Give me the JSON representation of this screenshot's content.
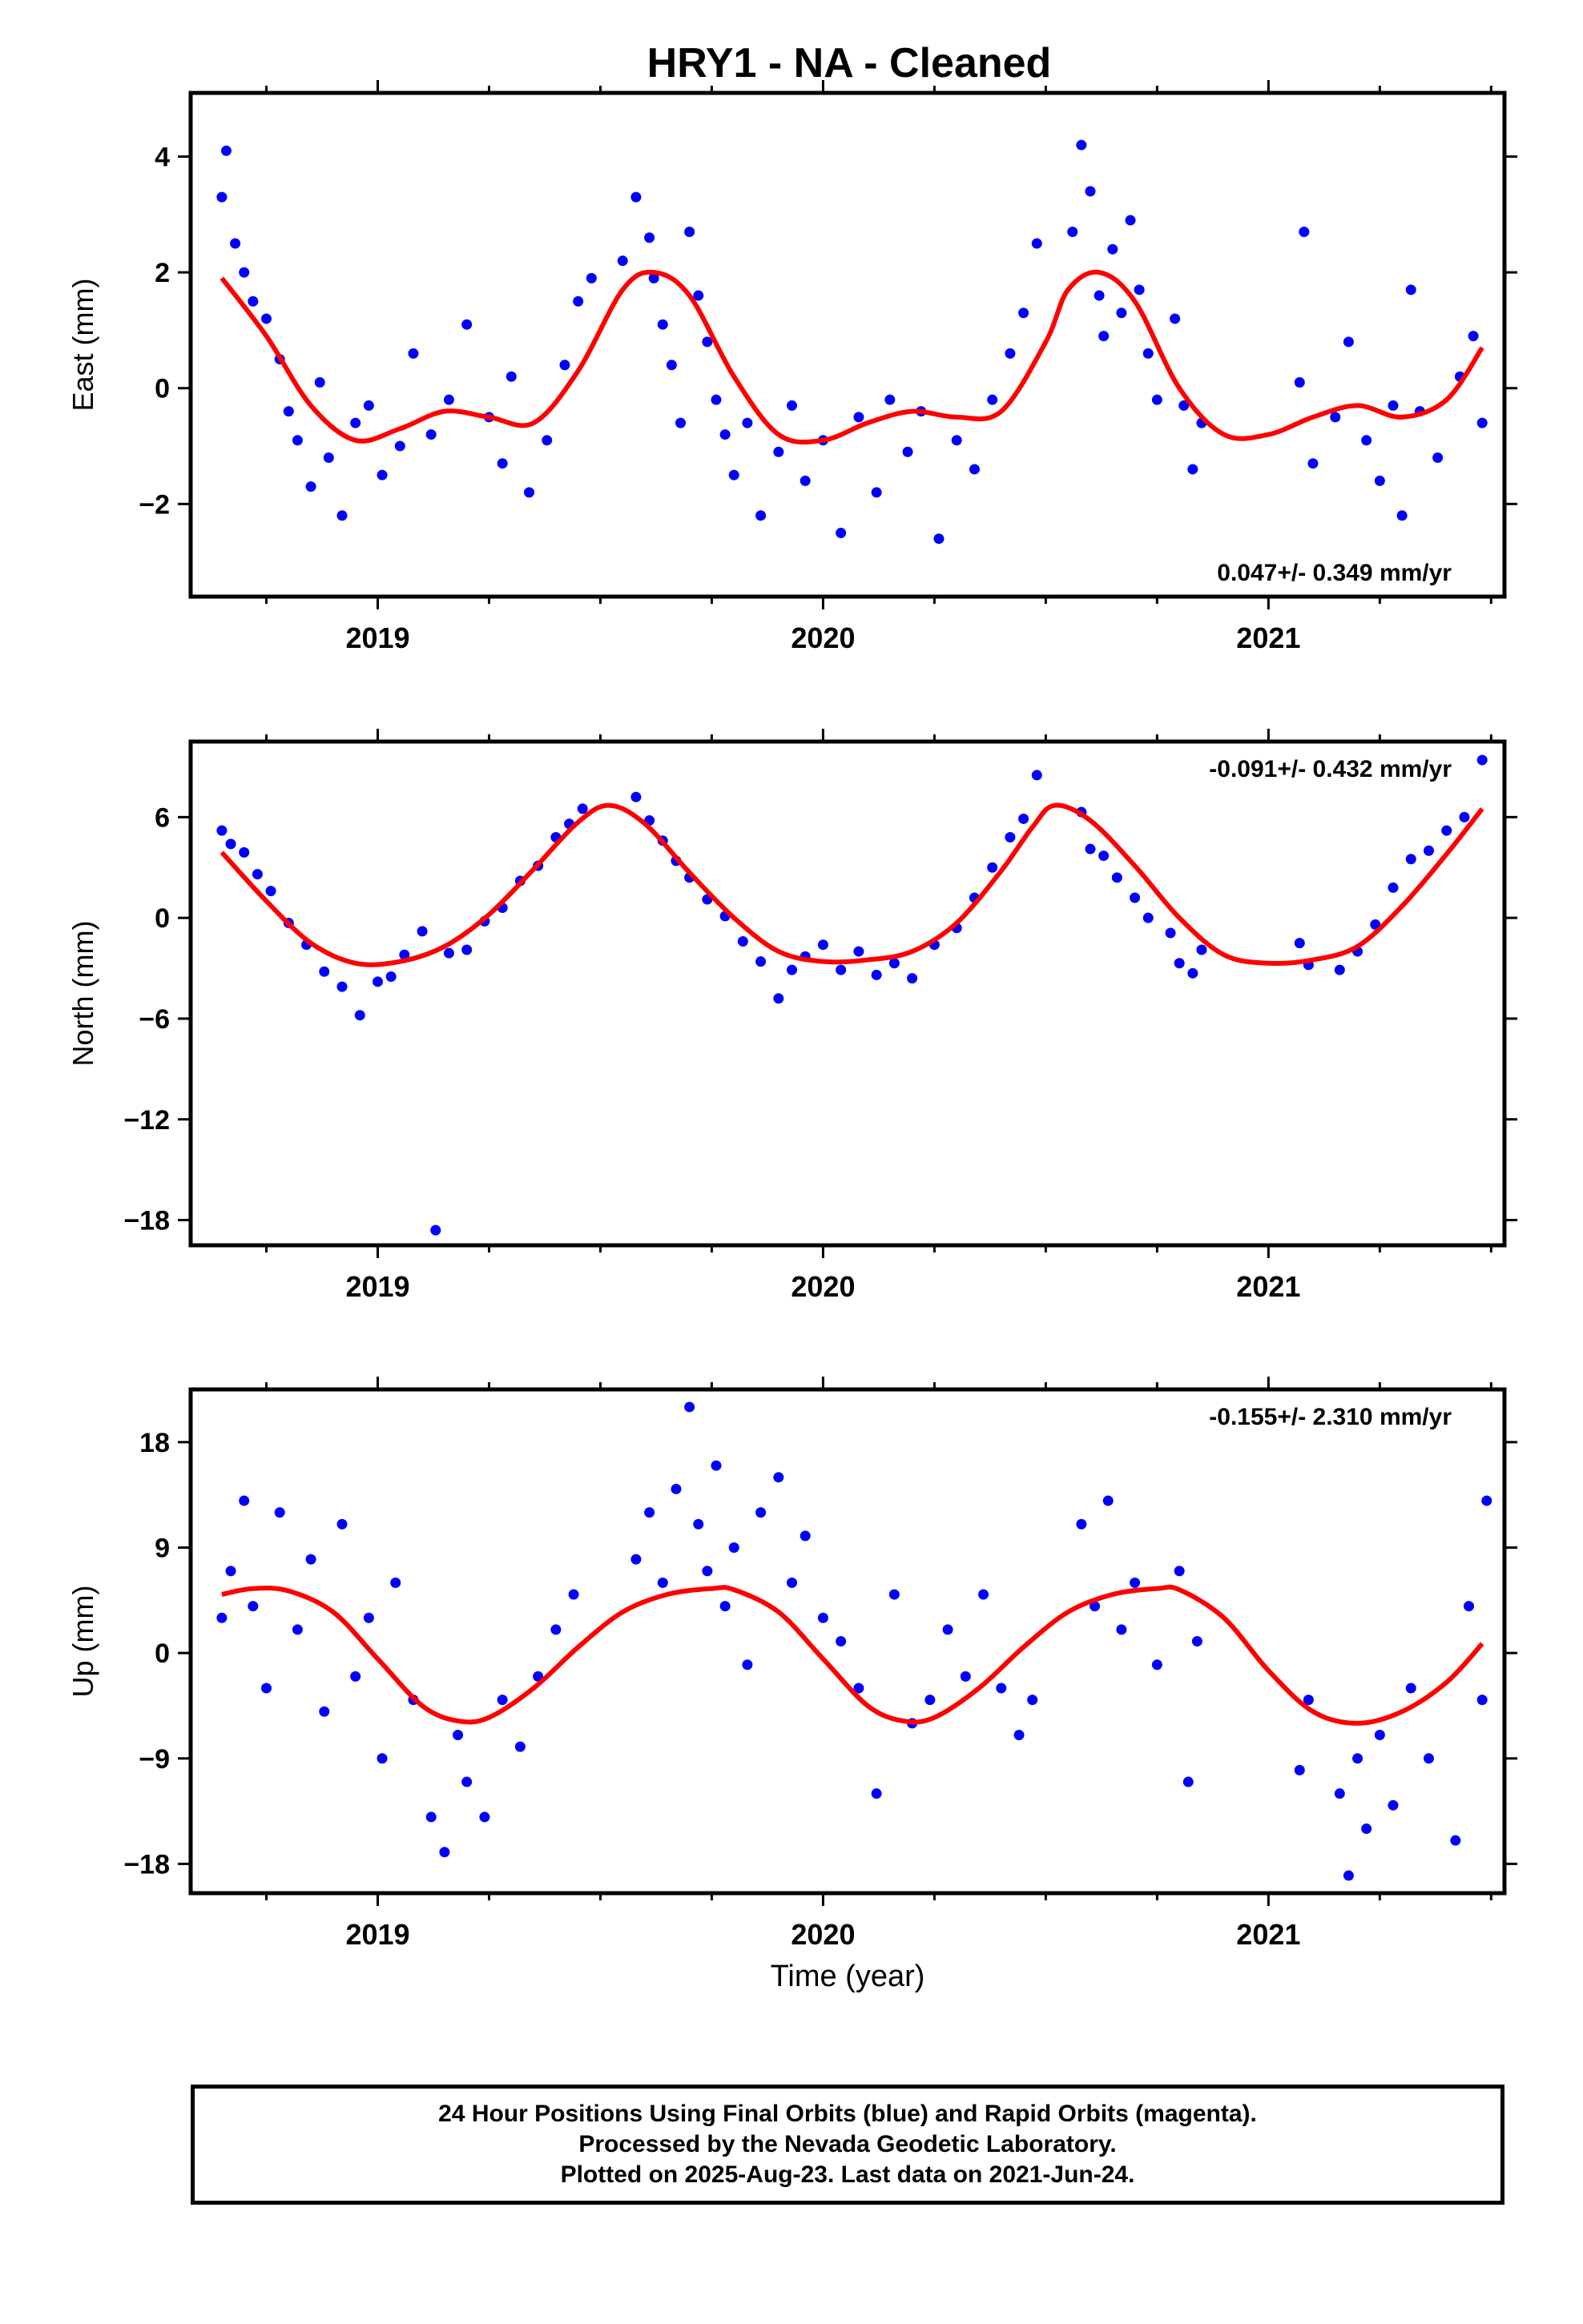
{
  "title": "HRY1  - NA - Cleaned",
  "colors": {
    "points": "#0000ff",
    "fit": "#ff0000",
    "axis": "#000000"
  },
  "footer": {
    "line1": "24 Hour Positions Using Final Orbits (blue) and Rapid Orbits (magenta).",
    "line2": "Processed by the Nevada Geodetic Laboratory.",
    "line3": "Plotted on 2025-Aug-23. Last data on 2021-Jun-24."
  },
  "chart_data": [
    {
      "type": "scatter",
      "ylabel": "East (mm)",
      "xlabel": "",
      "xlim": [
        2018.58,
        2021.53
      ],
      "ylim": [
        -3.6,
        5.1
      ],
      "yticks": [
        4,
        2,
        0,
        -2
      ],
      "ytick_labels": [
        "4",
        "2",
        "0",
        "−2"
      ],
      "xticks": [
        2019,
        2020,
        2021
      ],
      "xtick_labels": [
        "2019",
        "2020",
        "2021"
      ],
      "rate_label": "0.047+/- 0.349 mm/yr",
      "rate_position": "bottom-right",
      "series": [
        {
          "kind": "scatter",
          "x": [
            2018.65,
            2018.66,
            2018.68,
            2018.7,
            2018.72,
            2018.75,
            2018.78,
            2018.8,
            2018.82,
            2018.85,
            2018.87,
            2018.89,
            2018.92,
            2018.95,
            2018.98,
            2019.01,
            2019.05,
            2019.08,
            2019.12,
            2019.16,
            2019.2,
            2019.25,
            2019.28,
            2019.3,
            2019.34,
            2019.38,
            2019.42,
            2019.45,
            2019.48,
            2019.55,
            2019.58,
            2019.61,
            2019.62,
            2019.64,
            2019.66,
            2019.68,
            2019.7,
            2019.72,
            2019.74,
            2019.76,
            2019.78,
            2019.8,
            2019.83,
            2019.86,
            2019.9,
            2019.93,
            2019.96,
            2020.0,
            2020.04,
            2020.08,
            2020.12,
            2020.15,
            2020.19,
            2020.22,
            2020.26,
            2020.3,
            2020.34,
            2020.38,
            2020.42,
            2020.45,
            2020.48,
            2020.56,
            2020.58,
            2020.6,
            2020.62,
            2020.63,
            2020.65,
            2020.67,
            2020.69,
            2020.71,
            2020.73,
            2020.75,
            2020.79,
            2020.81,
            2020.83,
            2020.85,
            2021.07,
            2021.08,
            2021.1,
            2021.15,
            2021.18,
            2021.22,
            2021.25,
            2021.28,
            2021.3,
            2021.32,
            2021.34,
            2021.38,
            2021.43,
            2021.46,
            2021.48
          ],
          "y": [
            3.3,
            4.1,
            2.5,
            2.0,
            1.5,
            1.2,
            0.5,
            -0.4,
            -0.9,
            -1.7,
            0.1,
            -1.2,
            -2.2,
            -0.6,
            -0.3,
            -1.5,
            -1.0,
            0.6,
            -0.8,
            -0.2,
            1.1,
            -0.5,
            -1.3,
            0.2,
            -1.8,
            -0.9,
            0.4,
            1.5,
            1.9,
            2.2,
            3.3,
            2.6,
            1.9,
            1.1,
            0.4,
            -0.6,
            2.7,
            1.6,
            0.8,
            -0.2,
            -0.8,
            -1.5,
            -0.6,
            -2.2,
            -1.1,
            -0.3,
            -1.6,
            -0.9,
            -2.5,
            -0.5,
            -1.8,
            -0.2,
            -1.1,
            -0.4,
            -2.6,
            -0.9,
            -1.4,
            -0.2,
            0.6,
            1.3,
            2.5,
            2.7,
            4.2,
            3.4,
            1.6,
            0.9,
            2.4,
            1.3,
            2.9,
            1.7,
            0.6,
            -0.2,
            1.2,
            -0.3,
            -1.4,
            -0.6,
            0.1,
            2.7,
            -1.3,
            -0.5,
            0.8,
            -0.9,
            -1.6,
            -0.3,
            -2.2,
            1.7,
            -0.4,
            -1.2,
            0.2,
            0.9,
            -0.6
          ],
          "color": "#0000ff"
        },
        {
          "kind": "line",
          "x": [
            2018.65,
            2018.75,
            2018.85,
            2018.95,
            2019.05,
            2019.15,
            2019.25,
            2019.35,
            2019.45,
            2019.55,
            2019.62,
            2019.7,
            2019.8,
            2019.9,
            2020.0,
            2020.1,
            2020.2,
            2020.3,
            2020.4,
            2020.5,
            2020.55,
            2020.62,
            2020.7,
            2020.8,
            2020.9,
            2021.0,
            2021.1,
            2021.2,
            2021.3,
            2021.4,
            2021.48
          ],
          "y": [
            1.9,
            0.9,
            -0.3,
            -0.9,
            -0.7,
            -0.4,
            -0.5,
            -0.6,
            0.3,
            1.7,
            2.0,
            1.6,
            0.2,
            -0.8,
            -0.9,
            -0.6,
            -0.4,
            -0.5,
            -0.4,
            0.8,
            1.7,
            2.0,
            1.5,
            0.0,
            -0.8,
            -0.8,
            -0.5,
            -0.3,
            -0.5,
            -0.2,
            0.7
          ],
          "color": "#ff0000"
        }
      ]
    },
    {
      "type": "scatter",
      "ylabel": "North (mm)",
      "xlabel": "",
      "xlim": [
        2018.58,
        2021.53
      ],
      "ylim": [
        -19.5,
        10.5
      ],
      "yticks": [
        6,
        0,
        -6,
        -12,
        -18
      ],
      "ytick_labels": [
        "6",
        "0",
        "−6",
        "−12",
        "−18"
      ],
      "xticks": [
        2019,
        2020,
        2021
      ],
      "xtick_labels": [
        "2019",
        "2020",
        "2021"
      ],
      "rate_label": "-0.091+/- 0.432 mm/yr",
      "rate_position": "top-right",
      "series": [
        {
          "kind": "scatter",
          "x": [
            2018.65,
            2018.67,
            2018.7,
            2018.73,
            2018.76,
            2018.8,
            2018.84,
            2018.88,
            2018.92,
            2018.96,
            2019.0,
            2019.03,
            2019.06,
            2019.1,
            2019.13,
            2019.16,
            2019.2,
            2019.24,
            2019.28,
            2019.32,
            2019.36,
            2019.4,
            2019.43,
            2019.46,
            2019.58,
            2019.61,
            2019.64,
            2019.67,
            2019.7,
            2019.74,
            2019.78,
            2019.82,
            2019.86,
            2019.9,
            2019.93,
            2019.96,
            2020.0,
            2020.04,
            2020.08,
            2020.12,
            2020.16,
            2020.2,
            2020.25,
            2020.3,
            2020.34,
            2020.38,
            2020.42,
            2020.45,
            2020.48,
            2020.58,
            2020.6,
            2020.63,
            2020.66,
            2020.7,
            2020.73,
            2020.78,
            2020.8,
            2020.83,
            2020.85,
            2021.07,
            2021.09,
            2021.16,
            2021.2,
            2021.24,
            2021.28,
            2021.32,
            2021.36,
            2021.4,
            2021.44,
            2021.48
          ],
          "y": [
            5.2,
            4.4,
            3.9,
            2.6,
            1.6,
            -0.3,
            -1.6,
            -3.2,
            -4.1,
            -5.8,
            -3.8,
            -3.5,
            -2.2,
            -0.8,
            -18.6,
            -2.1,
            -1.9,
            -0.2,
            0.6,
            2.2,
            3.1,
            4.8,
            5.6,
            6.5,
            7.2,
            5.8,
            4.6,
            3.4,
            2.4,
            1.1,
            0.1,
            -1.4,
            -2.6,
            -4.8,
            -3.1,
            -2.3,
            -1.6,
            -3.1,
            -2.0,
            -3.4,
            -2.7,
            -3.6,
            -1.6,
            -0.6,
            1.2,
            3.0,
            4.8,
            5.9,
            8.5,
            6.3,
            4.1,
            3.7,
            2.4,
            1.2,
            0.0,
            -0.9,
            -2.7,
            -3.3,
            -1.9,
            -1.5,
            -2.8,
            -3.1,
            -2.0,
            -0.4,
            1.8,
            3.5,
            4.0,
            5.2,
            6.0,
            9.4
          ],
          "color": "#0000ff"
        },
        {
          "kind": "line",
          "x": [
            2018.65,
            2018.75,
            2018.85,
            2018.95,
            2019.05,
            2019.15,
            2019.25,
            2019.35,
            2019.45,
            2019.52,
            2019.6,
            2019.7,
            2019.8,
            2019.9,
            2020.0,
            2020.1,
            2020.2,
            2020.3,
            2020.4,
            2020.47,
            2020.52,
            2020.6,
            2020.7,
            2020.8,
            2020.9,
            2021.0,
            2021.1,
            2021.2,
            2021.3,
            2021.4,
            2021.48
          ],
          "y": [
            3.9,
            1.0,
            -1.5,
            -2.7,
            -2.6,
            -1.7,
            0.2,
            2.9,
            5.7,
            6.7,
            5.6,
            2.7,
            0.0,
            -2.0,
            -2.6,
            -2.5,
            -2.0,
            -0.3,
            2.8,
            5.4,
            6.7,
            5.8,
            3.1,
            0.0,
            -2.2,
            -2.7,
            -2.5,
            -1.7,
            0.7,
            3.8,
            6.5
          ],
          "color": "#ff0000"
        }
      ]
    },
    {
      "type": "scatter",
      "ylabel": "Up (mm)",
      "xlabel": "Time (year)",
      "xlim": [
        2018.58,
        2021.53
      ],
      "ylim": [
        -20.5,
        22.5
      ],
      "yticks": [
        18,
        9,
        0,
        -9,
        -18
      ],
      "ytick_labels": [
        "18",
        "9",
        "0",
        "−9",
        "−18"
      ],
      "xticks": [
        2019,
        2020,
        2021
      ],
      "xtick_labels": [
        "2019",
        "2020",
        "2021"
      ],
      "rate_label": "-0.155+/- 2.310 mm/yr",
      "rate_position": "top-right",
      "series": [
        {
          "kind": "scatter",
          "x": [
            2018.65,
            2018.67,
            2018.7,
            2018.72,
            2018.75,
            2018.78,
            2018.82,
            2018.85,
            2018.88,
            2018.92,
            2018.95,
            2018.98,
            2019.01,
            2019.04,
            2019.08,
            2019.12,
            2019.15,
            2019.18,
            2019.2,
            2019.24,
            2019.28,
            2019.32,
            2019.36,
            2019.4,
            2019.44,
            2019.58,
            2019.61,
            2019.64,
            2019.67,
            2019.7,
            2019.72,
            2019.74,
            2019.76,
            2019.78,
            2019.8,
            2019.83,
            2019.86,
            2019.9,
            2019.93,
            2019.96,
            2020.0,
            2020.04,
            2020.08,
            2020.12,
            2020.16,
            2020.2,
            2020.24,
            2020.28,
            2020.32,
            2020.36,
            2020.4,
            2020.44,
            2020.47,
            2020.58,
            2020.61,
            2020.64,
            2020.67,
            2020.7,
            2020.75,
            2020.8,
            2020.82,
            2020.84,
            2021.07,
            2021.09,
            2021.16,
            2021.18,
            2021.2,
            2021.22,
            2021.25,
            2021.28,
            2021.32,
            2021.36,
            2021.42,
            2021.45,
            2021.48,
            2021.49
          ],
          "y": [
            3.0,
            7.0,
            13.0,
            4.0,
            -3.0,
            12.0,
            2.0,
            8.0,
            -5.0,
            11.0,
            -2.0,
            3.0,
            -9.0,
            6.0,
            -4.0,
            -14.0,
            -17.0,
            -7.0,
            -11.0,
            -14.0,
            -4.0,
            -8.0,
            -2.0,
            2.0,
            5.0,
            8.0,
            12.0,
            6.0,
            14.0,
            21.0,
            11.0,
            7.0,
            16.0,
            4.0,
            9.0,
            -1.0,
            12.0,
            15.0,
            6.0,
            10.0,
            3.0,
            1.0,
            -3.0,
            -12.0,
            5.0,
            -6.0,
            -4.0,
            2.0,
            -2.0,
            5.0,
            -3.0,
            -7.0,
            -4.0,
            11.0,
            4.0,
            13.0,
            2.0,
            6.0,
            -1.0,
            7.0,
            -11.0,
            1.0,
            -10.0,
            -4.0,
            -12.0,
            -19.0,
            -9.0,
            -15.0,
            -7.0,
            -13.0,
            -3.0,
            -9.0,
            -16.0,
            4.0,
            -4.0,
            13.0
          ],
          "color": "#0000ff"
        },
        {
          "kind": "line",
          "x": [
            2018.65,
            2018.72,
            2018.8,
            2018.9,
            2019.0,
            2019.1,
            2019.18,
            2019.25,
            2019.35,
            2019.45,
            2019.55,
            2019.65,
            2019.75,
            2019.8,
            2019.9,
            2020.0,
            2020.1,
            2020.18,
            2020.25,
            2020.35,
            2020.45,
            2020.55,
            2020.65,
            2020.75,
            2020.8,
            2020.9,
            2021.0,
            2021.1,
            2021.2,
            2021.3,
            2021.4,
            2021.48
          ],
          "y": [
            5.0,
            5.5,
            5.3,
            3.5,
            -0.5,
            -4.5,
            -5.8,
            -5.5,
            -3.0,
            0.5,
            3.5,
            5.0,
            5.5,
            5.4,
            3.5,
            -0.5,
            -4.5,
            -5.8,
            -5.5,
            -3.0,
            0.5,
            3.5,
            5.0,
            5.5,
            5.4,
            3.0,
            -1.5,
            -5.0,
            -6.0,
            -5.0,
            -2.5,
            0.8
          ],
          "color": "#ff0000"
        }
      ]
    }
  ]
}
